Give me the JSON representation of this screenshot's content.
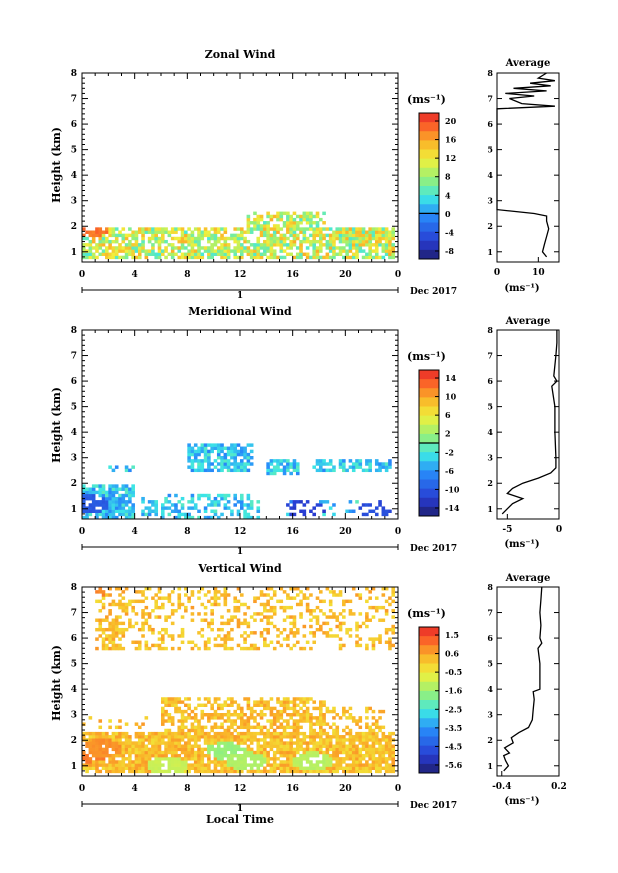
{
  "chart_data": [
    {
      "type": "heatmap",
      "title": "Zonal Wind",
      "ylabel": "Height (km)",
      "xlabel": "",
      "units": "(ms⁻¹)",
      "xticks": [
        "0",
        "4",
        "8",
        "12",
        "16",
        "20",
        "0"
      ],
      "yticks": [
        "1",
        "2",
        "3",
        "4",
        "5",
        "6",
        "7",
        "8"
      ],
      "xlim": [
        0,
        24
      ],
      "ylim": [
        0.6,
        8
      ],
      "day_label": "1",
      "date_label": "Dec 2017",
      "colorbar": {
        "labels": [
          "20",
          "16",
          "12",
          "8",
          "4",
          "0",
          "-4",
          "-8"
        ],
        "range": [
          -10,
          22
        ],
        "zero_line": 0
      },
      "field": {
        "base": 10,
        "amp": 6,
        "bands": [
          {
            "t0": 0.0,
            "t1": 23.8,
            "h0": 0.7,
            "h1": 2.0,
            "fill": 0.75
          },
          {
            "t0": 12.5,
            "t1": 18.5,
            "h0": 1.8,
            "h1": 2.6,
            "fill": 0.7
          },
          {
            "t0": 20.0,
            "t1": 23.5,
            "h0": 1.2,
            "h1": 2.0,
            "fill": 0.7
          }
        ],
        "hot": [
          {
            "t": 0.5,
            "h": 1.9,
            "v": 18
          }
        ]
      },
      "average": {
        "title": "Average",
        "xlabel": "(ms⁻¹)",
        "xticks": [
          "0",
          "10"
        ],
        "xlim": [
          0,
          15
        ],
        "height": [
          0.8,
          1.0,
          1.3,
          1.6,
          1.9,
          2.2,
          2.4,
          2.5,
          2.6,
          2.65,
          3.3,
          3.4,
          6.6,
          6.7,
          6.8,
          7.0,
          7.1,
          7.2,
          7.3,
          7.4,
          7.5,
          7.6,
          7.7,
          7.8,
          8.0
        ],
        "value": [
          12,
          11,
          11.5,
          12,
          12.5,
          12,
          12,
          9,
          3,
          0,
          0,
          0,
          0,
          14,
          6,
          3,
          9,
          2,
          12,
          4,
          13,
          8,
          14,
          10,
          12
        ]
      }
    },
    {
      "type": "heatmap",
      "title": "Meridional Wind",
      "ylabel": "Height (km)",
      "xlabel": "",
      "units": "(ms⁻¹)",
      "xticks": [
        "0",
        "4",
        "8",
        "12",
        "16",
        "20",
        "0"
      ],
      "yticks": [
        "1",
        "2",
        "3",
        "4",
        "5",
        "6",
        "7",
        "8"
      ],
      "xlim": [
        0,
        24
      ],
      "ylim": [
        0.6,
        8
      ],
      "day_label": "1",
      "date_label": "Dec 2017",
      "colorbar": {
        "labels": [
          "14",
          "10",
          "6",
          "2",
          "-2",
          "-6",
          "-10",
          "-14"
        ],
        "range": [
          -16,
          16
        ],
        "zero_line": 0
      },
      "field": {
        "base": -4,
        "amp": 3,
        "bands": [
          {
            "t0": 0.0,
            "t1": 4.0,
            "h0": 0.6,
            "h1": 1.9,
            "fill": 0.85
          },
          {
            "t0": 4.5,
            "t1": 13.5,
            "h0": 0.6,
            "h1": 1.6,
            "fill": 0.45
          },
          {
            "t0": 8.0,
            "t1": 13.0,
            "h0": 2.4,
            "h1": 3.5,
            "fill": 0.75
          },
          {
            "t0": 14.0,
            "t1": 16.5,
            "h0": 2.3,
            "h1": 3.0,
            "fill": 0.7
          },
          {
            "t0": 17.5,
            "t1": 23.5,
            "h0": 2.5,
            "h1": 3.0,
            "fill": 0.65
          },
          {
            "t0": 2.0,
            "t1": 4.0,
            "h0": 2.5,
            "h1": 2.7,
            "fill": 0.5
          },
          {
            "t0": 15.5,
            "t1": 23.8,
            "h0": 0.7,
            "h1": 1.4,
            "fill": 0.4
          }
        ],
        "hot": [
          {
            "t": 2.8,
            "h": 5.8,
            "v": -3
          },
          {
            "t": 11.5,
            "h": 7.5,
            "v": -3
          }
        ],
        "cold": [
          {
            "t": 0.5,
            "h": 1.2,
            "v": -10
          },
          {
            "t": 22.5,
            "h": 1.0,
            "v": -11
          },
          {
            "t": 17.0,
            "h": 1.0,
            "v": -12
          }
        ]
      },
      "average": {
        "title": "Average",
        "xlabel": "(ms⁻¹)",
        "xticks": [
          "-5",
          "0"
        ],
        "xlim": [
          -6,
          0
        ],
        "height": [
          0.8,
          1.0,
          1.2,
          1.4,
          1.6,
          1.8,
          2.0,
          2.2,
          2.4,
          2.6,
          3.0,
          4.0,
          5.0,
          5.8,
          6.0,
          6.2,
          7.0,
          7.5,
          8.0
        ],
        "value": [
          -5.5,
          -5,
          -4.5,
          -3.5,
          -5,
          -4.5,
          -3.5,
          -2,
          -0.8,
          -0.3,
          -0.3,
          -0.4,
          -0.4,
          -0.7,
          -0.2,
          -0.5,
          -0.3,
          -0.2,
          -0.2
        ]
      }
    },
    {
      "type": "heatmap",
      "title": "Vertical Wind",
      "ylabel": "Height (km)",
      "xlabel": "Local Time",
      "units": "(ms⁻¹)",
      "xticks": [
        "0",
        "4",
        "8",
        "12",
        "16",
        "20",
        "0"
      ],
      "yticks": [
        "1",
        "2",
        "3",
        "4",
        "5",
        "6",
        "7",
        "8"
      ],
      "xlim": [
        0,
        24
      ],
      "ylim": [
        0.6,
        8
      ],
      "day_label": "1",
      "date_label": "Dec 2017",
      "colorbar": {
        "labels": [
          "1.5",
          "0.6",
          "-0.5",
          "-1.6",
          "-2.5",
          "-3.5",
          "-4.5",
          "-5.6"
        ],
        "range": [
          -6,
          2
        ],
        "zero_line": null
      },
      "field": {
        "base": 0.2,
        "amp": 0.5,
        "bands": [
          {
            "t0": 0.0,
            "t1": 23.8,
            "h0": 0.7,
            "h1": 2.3,
            "fill": 0.85
          },
          {
            "t0": 6.0,
            "t1": 18.5,
            "h0": 2.3,
            "h1": 3.7,
            "fill": 0.6
          },
          {
            "t0": 18.0,
            "t1": 23.0,
            "h0": 2.3,
            "h1": 3.3,
            "fill": 0.4
          },
          {
            "t0": 0.0,
            "t1": 5.0,
            "h0": 2.5,
            "h1": 3.0,
            "fill": 0.15
          },
          {
            "t0": 1.0,
            "t1": 23.8,
            "h0": 5.5,
            "h1": 8.0,
            "fill": 0.3
          },
          {
            "t0": 1.5,
            "t1": 3.0,
            "h0": 5.5,
            "h1": 6.8,
            "fill": 0.6
          }
        ],
        "hot": [
          {
            "t": 0.3,
            "h": 7.8,
            "v": 0.9
          },
          {
            "t": 0.6,
            "h": 1.5,
            "v": 1.0
          },
          {
            "t": 1.5,
            "h": 1.7,
            "v": 0.8
          }
        ],
        "cold": [
          {
            "t": 11.0,
            "h": 1.6,
            "v": -1.6
          },
          {
            "t": 12.5,
            "h": 1.2,
            "v": -1.3
          },
          {
            "t": 17.5,
            "h": 1.2,
            "v": -1.2
          },
          {
            "t": 6.5,
            "h": 1.0,
            "v": -1.0
          }
        ]
      },
      "average": {
        "title": "Average",
        "xlabel": "(ms⁻¹)",
        "xticks": [
          "-0.4",
          "0.2"
        ],
        "xlim": [
          -0.45,
          0.2
        ],
        "height": [
          0.8,
          1.0,
          1.2,
          1.4,
          1.5,
          1.7,
          1.9,
          2.1,
          2.3,
          2.5,
          2.8,
          3.2,
          3.6,
          3.9,
          4.0,
          5.0,
          5.6,
          5.8,
          6.0,
          6.5,
          7.0,
          7.5,
          8.0
        ],
        "value": [
          -0.38,
          -0.33,
          -0.36,
          -0.38,
          -0.32,
          -0.37,
          -0.28,
          -0.3,
          -0.22,
          -0.12,
          -0.08,
          -0.07,
          -0.06,
          -0.07,
          0.0,
          0.0,
          -0.02,
          0.02,
          0.0,
          0.01,
          0.0,
          0.01,
          0.02
        ]
      }
    }
  ]
}
